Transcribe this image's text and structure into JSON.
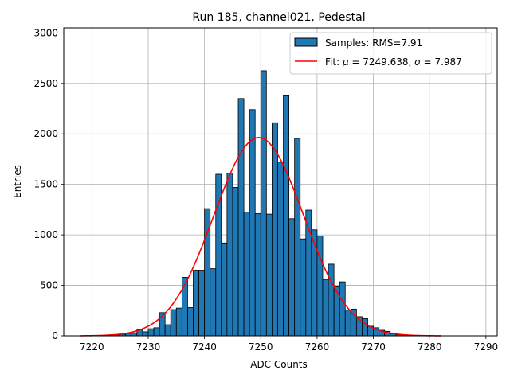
{
  "chart_data": {
    "type": "bar",
    "title": "Run 185, channel021, Pedestal",
    "xlabel": "ADC Counts",
    "ylabel": "Entries",
    "xlim": [
      7215,
      7292
    ],
    "ylim": [
      0,
      3050
    ],
    "xticks": [
      7220,
      7230,
      7240,
      7250,
      7260,
      7270,
      7280,
      7290
    ],
    "yticks": [
      0,
      500,
      1000,
      1500,
      2000,
      2500,
      3000
    ],
    "grid": true,
    "legend_position": "upper-right",
    "colors": {
      "bars": "#1f77b4",
      "bar_edge": "#000000",
      "fit": "#ff0000",
      "grid": "#b0b0b0"
    },
    "series": [
      {
        "name": "Samples: RMS=7.91",
        "kind": "histogram",
        "bin_width": 1,
        "bins": [
          7222,
          7223,
          7224,
          7225,
          7226,
          7227,
          7228,
          7229,
          7230,
          7231,
          7232,
          7233,
          7234,
          7235,
          7236,
          7237,
          7238,
          7239,
          7240,
          7241,
          7242,
          7243,
          7244,
          7245,
          7246,
          7247,
          7248,
          7249,
          7250,
          7251,
          7252,
          7253,
          7254,
          7255,
          7256,
          7257,
          7258,
          7259,
          7260,
          7261,
          7262,
          7263,
          7264,
          7265,
          7266,
          7267,
          7268,
          7269,
          7270,
          7271,
          7272,
          7273,
          7274,
          7275,
          7276,
          7277
        ],
        "values": [
          3,
          5,
          10,
          15,
          25,
          30,
          60,
          40,
          70,
          80,
          230,
          110,
          260,
          275,
          580,
          280,
          650,
          650,
          1260,
          665,
          1600,
          920,
          1610,
          1470,
          2350,
          1225,
          2240,
          1210,
          2625,
          1205,
          2110,
          1720,
          2385,
          1160,
          1955,
          960,
          1245,
          1050,
          990,
          555,
          710,
          485,
          535,
          255,
          265,
          190,
          170,
          95,
          80,
          55,
          45,
          20,
          12,
          5,
          3,
          2
        ]
      },
      {
        "name": "Fit: μ = 7249.638, σ = 7.987",
        "kind": "gaussian",
        "mu": 7249.638,
        "sigma": 7.987,
        "amplitude": 1963,
        "x_range": [
          7218,
          7282
        ]
      }
    ],
    "legend": {
      "samples_label": "Samples: RMS=7.91",
      "fit_prefix": "Fit: ",
      "mu_symbol": "μ",
      "mu_text": " = 7249.638, ",
      "sigma_symbol": "σ",
      "sigma_text": " = 7.987"
    }
  }
}
